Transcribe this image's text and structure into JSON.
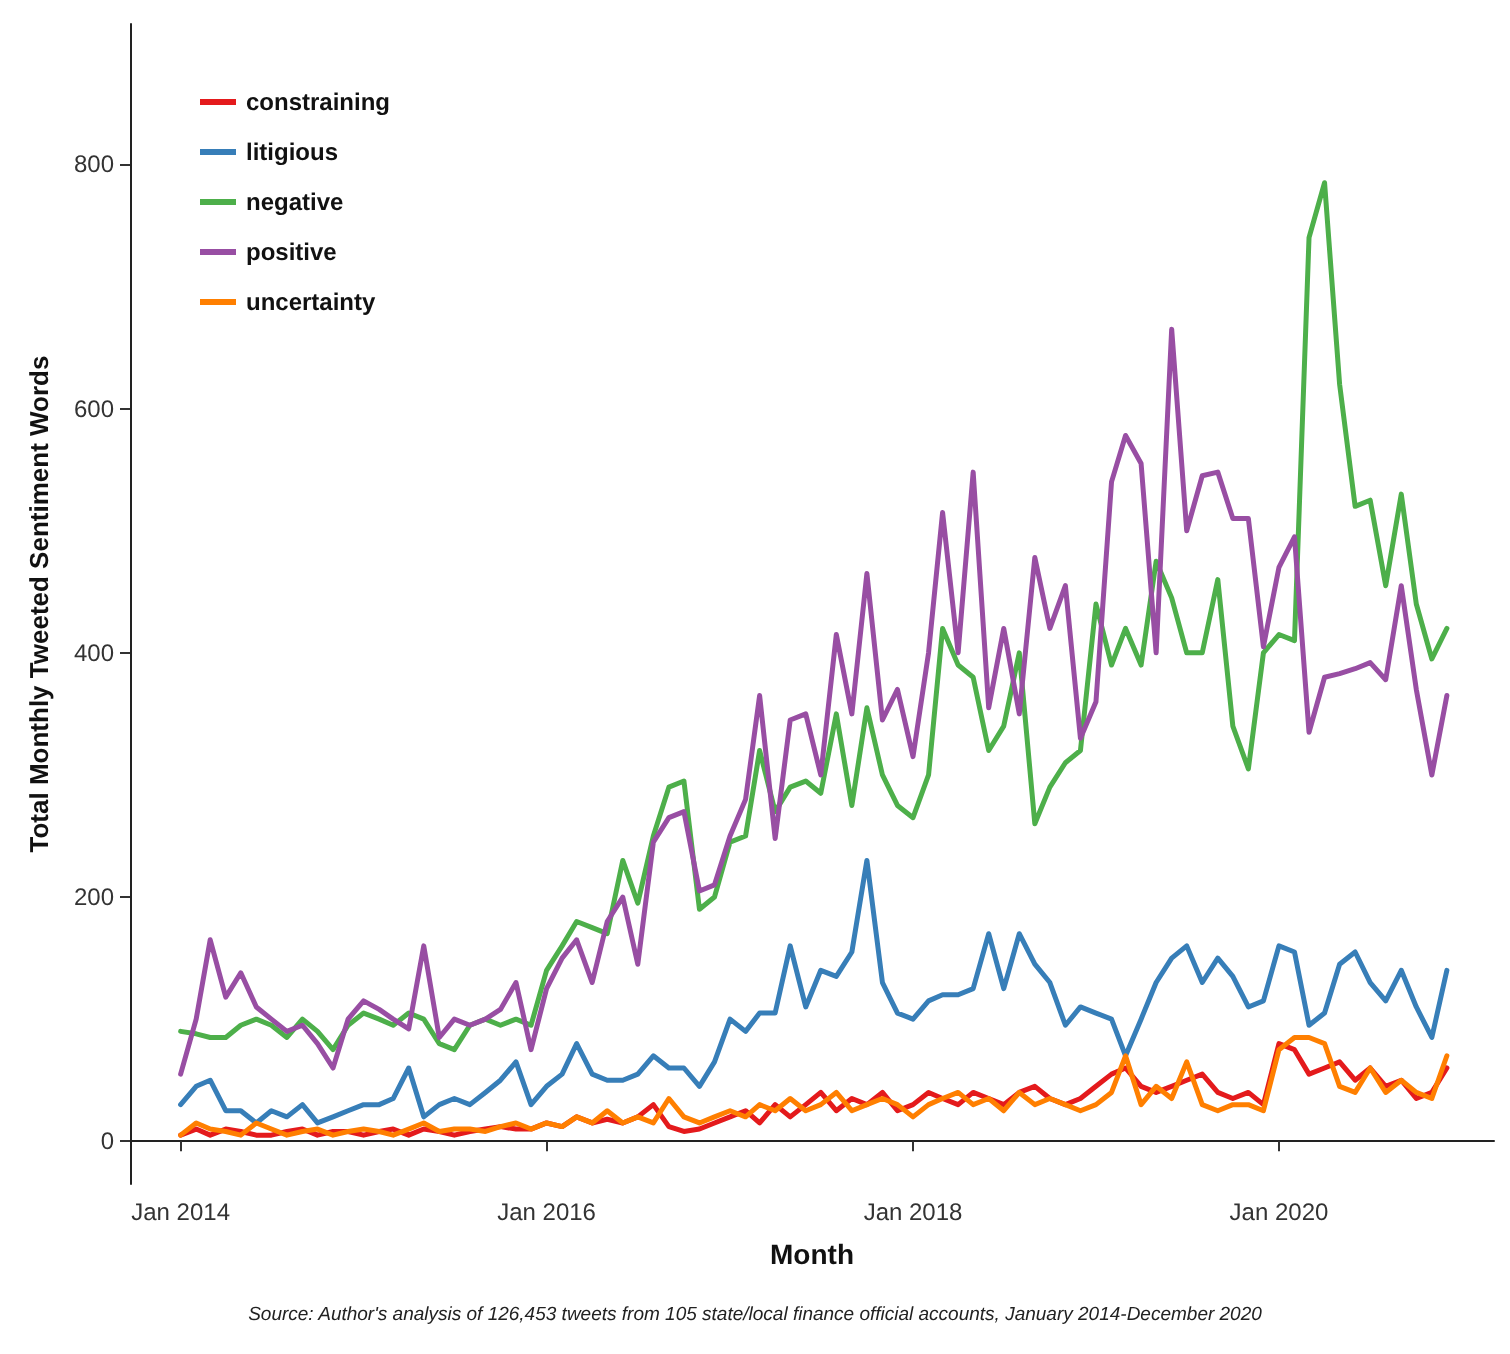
{
  "chart_data": {
    "type": "line",
    "xlabel": "Month",
    "ylabel": "Total Monthly Tweeted Sentiment Words",
    "annotations": [
      "Source: Author's analysis of 126,453 tweets from 105 state/local finance official accounts, January 2014-December 2020"
    ],
    "x": [
      "2014-01",
      "2014-02",
      "2014-03",
      "2014-04",
      "2014-05",
      "2014-06",
      "2014-07",
      "2014-08",
      "2014-09",
      "2014-10",
      "2014-11",
      "2014-12",
      "2015-01",
      "2015-02",
      "2015-03",
      "2015-04",
      "2015-05",
      "2015-06",
      "2015-07",
      "2015-08",
      "2015-09",
      "2015-10",
      "2015-11",
      "2015-12",
      "2016-01",
      "2016-02",
      "2016-03",
      "2016-04",
      "2016-05",
      "2016-06",
      "2016-07",
      "2016-08",
      "2016-09",
      "2016-10",
      "2016-11",
      "2016-12",
      "2017-01",
      "2017-02",
      "2017-03",
      "2017-04",
      "2017-05",
      "2017-06",
      "2017-07",
      "2017-08",
      "2017-09",
      "2017-10",
      "2017-11",
      "2017-12",
      "2018-01",
      "2018-02",
      "2018-03",
      "2018-04",
      "2018-05",
      "2018-06",
      "2018-07",
      "2018-08",
      "2018-09",
      "2018-10",
      "2018-11",
      "2018-12",
      "2019-01",
      "2019-02",
      "2019-03",
      "2019-04",
      "2019-05",
      "2019-06",
      "2019-07",
      "2019-08",
      "2019-09",
      "2019-10",
      "2019-11",
      "2019-12",
      "2020-01",
      "2020-02",
      "2020-03",
      "2020-04",
      "2020-05",
      "2020-06",
      "2020-07",
      "2020-08",
      "2020-09",
      "2020-10",
      "2020-11",
      "2020-12"
    ],
    "series": [
      {
        "name": "constraining",
        "color": "#e41a1c",
        "values": [
          5,
          10,
          5,
          10,
          8,
          5,
          5,
          8,
          10,
          5,
          8,
          8,
          5,
          8,
          10,
          5,
          10,
          8,
          5,
          8,
          10,
          12,
          10,
          10,
          15,
          12,
          20,
          15,
          18,
          15,
          20,
          30,
          12,
          8,
          10,
          15,
          20,
          25,
          15,
          30,
          20,
          30,
          40,
          25,
          35,
          30,
          40,
          25,
          30,
          40,
          35,
          30,
          40,
          35,
          30,
          40,
          45,
          35,
          30,
          35,
          45,
          55,
          60,
          45,
          40,
          45,
          50,
          55,
          40,
          35,
          40,
          30,
          80,
          75,
          55,
          60,
          65,
          50,
          60,
          45,
          50,
          35,
          40,
          60
        ]
      },
      {
        "name": "litigious",
        "color": "#377eb8",
        "values": [
          30,
          45,
          50,
          25,
          25,
          15,
          25,
          20,
          30,
          15,
          20,
          25,
          30,
          30,
          35,
          60,
          20,
          30,
          35,
          30,
          40,
          50,
          65,
          30,
          45,
          55,
          80,
          55,
          50,
          50,
          55,
          70,
          60,
          60,
          45,
          65,
          100,
          90,
          105,
          105,
          160,
          110,
          140,
          135,
          155,
          230,
          130,
          105,
          100,
          115,
          120,
          120,
          125,
          170,
          125,
          170,
          145,
          130,
          95,
          110,
          105,
          100,
          70,
          100,
          130,
          150,
          160,
          130,
          150,
          135,
          110,
          115,
          160,
          155,
          95,
          105,
          145,
          155,
          130,
          115,
          140,
          110,
          85,
          140
        ]
      },
      {
        "name": "negative",
        "color": "#4daf4a",
        "values": [
          90,
          88,
          85,
          85,
          95,
          100,
          95,
          85,
          100,
          90,
          75,
          95,
          105,
          100,
          95,
          105,
          100,
          80,
          75,
          95,
          100,
          95,
          100,
          95,
          140,
          160,
          180,
          175,
          170,
          230,
          195,
          250,
          290,
          295,
          190,
          200,
          245,
          250,
          320,
          270,
          290,
          295,
          285,
          350,
          275,
          355,
          300,
          275,
          265,
          300,
          420,
          390,
          380,
          320,
          340,
          400,
          260,
          290,
          310,
          320,
          440,
          390,
          420,
          390,
          475,
          445,
          400,
          400,
          460,
          340,
          305,
          400,
          415,
          410,
          740,
          785,
          620,
          520,
          525,
          455,
          530,
          440,
          395,
          420
        ]
      },
      {
        "name": "positive",
        "color": "#984ea3",
        "values": [
          55,
          100,
          165,
          118,
          138,
          110,
          100,
          90,
          95,
          80,
          60,
          100,
          115,
          108,
          100,
          92,
          160,
          85,
          100,
          95,
          100,
          108,
          130,
          75,
          125,
          150,
          165,
          130,
          180,
          200,
          145,
          245,
          265,
          270,
          205,
          210,
          250,
          280,
          365,
          248,
          345,
          350,
          300,
          415,
          350,
          465,
          345,
          370,
          315,
          400,
          515,
          400,
          548,
          355,
          420,
          350,
          478,
          420,
          455,
          330,
          360,
          540,
          578,
          555,
          400,
          665,
          500,
          545,
          548,
          510,
          510,
          405,
          470,
          495,
          335,
          380,
          383,
          387,
          392,
          378,
          455,
          370,
          300,
          365
        ]
      },
      {
        "name": "uncertainty",
        "color": "#ff7f00",
        "values": [
          5,
          15,
          10,
          8,
          5,
          15,
          10,
          5,
          8,
          10,
          5,
          8,
          10,
          8,
          5,
          10,
          15,
          8,
          10,
          10,
          8,
          12,
          15,
          10,
          15,
          12,
          20,
          15,
          25,
          15,
          20,
          15,
          35,
          20,
          15,
          20,
          25,
          20,
          30,
          25,
          35,
          25,
          30,
          40,
          25,
          30,
          35,
          30,
          20,
          30,
          35,
          40,
          30,
          35,
          25,
          40,
          30,
          35,
          30,
          25,
          30,
          40,
          70,
          30,
          45,
          35,
          65,
          30,
          25,
          30,
          30,
          25,
          75,
          85,
          85,
          80,
          45,
          40,
          60,
          40,
          50,
          40,
          35,
          70
        ]
      }
    ],
    "xlim": [
      "2013-09-22",
      "2021-03-05"
    ],
    "xticks": [
      {
        "value": "2014-01",
        "label": "Jan 2014"
      },
      {
        "value": "2016-01",
        "label": "Jan 2016"
      },
      {
        "value": "2018-01",
        "label": "Jan 2018"
      },
      {
        "value": "2020-01",
        "label": "Jan 2020"
      }
    ],
    "ylim": [
      -35,
      915
    ],
    "yticks": [
      0,
      200,
      400,
      600,
      800
    ],
    "legend": "top left",
    "grid": false,
    "marker": "none",
    "line_style": "solid"
  }
}
